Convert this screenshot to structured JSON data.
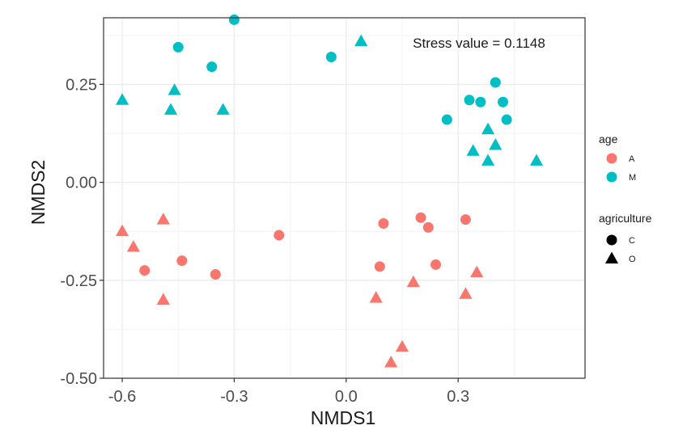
{
  "chart_data": {
    "type": "scatter",
    "xlabel": "NMDS1",
    "ylabel": "NMDS2",
    "xlim": [
      -0.65,
      0.64
    ],
    "ylim": [
      -0.5,
      0.42
    ],
    "xticks": [
      -0.6,
      -0.3,
      0.0,
      0.3
    ],
    "xtick_labels": [
      "-0.6",
      "-0.3",
      "0.0",
      "0.3"
    ],
    "yticks": [
      -0.5,
      -0.25,
      0.0,
      0.25
    ],
    "ytick_labels": [
      "-0.50",
      "-0.25",
      "0.00",
      "0.25"
    ],
    "grid": true,
    "annotation": "Stress value = 0.1148",
    "legend_position": "right",
    "legend": {
      "color": {
        "title": "age",
        "entries": [
          {
            "label": "A",
            "color": "#f8766d"
          },
          {
            "label": "M",
            "color": "#00bfc4"
          }
        ]
      },
      "shape": {
        "title": "agriculture",
        "entries": [
          {
            "label": "C",
            "shape": "circle"
          },
          {
            "label": "O",
            "shape": "triangle"
          }
        ]
      }
    },
    "points": [
      {
        "x": -0.3,
        "y": 0.415,
        "age": "M",
        "agriculture": "C"
      },
      {
        "x": -0.45,
        "y": 0.345,
        "age": "M",
        "agriculture": "C"
      },
      {
        "x": -0.36,
        "y": 0.295,
        "age": "M",
        "agriculture": "C"
      },
      {
        "x": -0.04,
        "y": 0.32,
        "age": "M",
        "agriculture": "C"
      },
      {
        "x": 0.27,
        "y": 0.16,
        "age": "M",
        "agriculture": "C"
      },
      {
        "x": 0.33,
        "y": 0.21,
        "age": "M",
        "agriculture": "C"
      },
      {
        "x": 0.36,
        "y": 0.205,
        "age": "M",
        "agriculture": "C"
      },
      {
        "x": 0.4,
        "y": 0.255,
        "age": "M",
        "agriculture": "C"
      },
      {
        "x": 0.42,
        "y": 0.205,
        "age": "M",
        "agriculture": "C"
      },
      {
        "x": 0.43,
        "y": 0.16,
        "age": "M",
        "agriculture": "C"
      },
      {
        "x": -0.6,
        "y": 0.21,
        "age": "M",
        "agriculture": "O"
      },
      {
        "x": -0.46,
        "y": 0.235,
        "age": "M",
        "agriculture": "O"
      },
      {
        "x": -0.47,
        "y": 0.185,
        "age": "M",
        "agriculture": "O"
      },
      {
        "x": -0.33,
        "y": 0.185,
        "age": "M",
        "agriculture": "O"
      },
      {
        "x": 0.04,
        "y": 0.36,
        "age": "M",
        "agriculture": "O"
      },
      {
        "x": 0.34,
        "y": 0.08,
        "age": "M",
        "agriculture": "O"
      },
      {
        "x": 0.38,
        "y": 0.135,
        "age": "M",
        "agriculture": "O"
      },
      {
        "x": 0.38,
        "y": 0.055,
        "age": "M",
        "agriculture": "O"
      },
      {
        "x": 0.4,
        "y": 0.095,
        "age": "M",
        "agriculture": "O"
      },
      {
        "x": 0.51,
        "y": 0.055,
        "age": "M",
        "agriculture": "O"
      },
      {
        "x": -0.18,
        "y": -0.135,
        "age": "A",
        "agriculture": "C"
      },
      {
        "x": -0.54,
        "y": -0.225,
        "age": "A",
        "agriculture": "C"
      },
      {
        "x": -0.44,
        "y": -0.2,
        "age": "A",
        "agriculture": "C"
      },
      {
        "x": -0.35,
        "y": -0.235,
        "age": "A",
        "agriculture": "C"
      },
      {
        "x": 0.1,
        "y": -0.105,
        "age": "A",
        "agriculture": "C"
      },
      {
        "x": 0.09,
        "y": -0.215,
        "age": "A",
        "agriculture": "C"
      },
      {
        "x": 0.2,
        "y": -0.09,
        "age": "A",
        "agriculture": "C"
      },
      {
        "x": 0.22,
        "y": -0.115,
        "age": "A",
        "agriculture": "C"
      },
      {
        "x": 0.24,
        "y": -0.21,
        "age": "A",
        "agriculture": "C"
      },
      {
        "x": 0.32,
        "y": -0.095,
        "age": "A",
        "agriculture": "C"
      },
      {
        "x": -0.6,
        "y": -0.125,
        "age": "A",
        "agriculture": "O"
      },
      {
        "x": -0.57,
        "y": -0.165,
        "age": "A",
        "agriculture": "O"
      },
      {
        "x": -0.49,
        "y": -0.095,
        "age": "A",
        "agriculture": "O"
      },
      {
        "x": -0.49,
        "y": -0.3,
        "age": "A",
        "agriculture": "O"
      },
      {
        "x": 0.08,
        "y": -0.295,
        "age": "A",
        "agriculture": "O"
      },
      {
        "x": 0.18,
        "y": -0.255,
        "age": "A",
        "agriculture": "O"
      },
      {
        "x": 0.32,
        "y": -0.285,
        "age": "A",
        "agriculture": "O"
      },
      {
        "x": 0.35,
        "y": -0.23,
        "age": "A",
        "agriculture": "O"
      },
      {
        "x": 0.15,
        "y": -0.42,
        "age": "A",
        "agriculture": "O"
      },
      {
        "x": 0.12,
        "y": -0.46,
        "age": "A",
        "agriculture": "O"
      }
    ]
  }
}
